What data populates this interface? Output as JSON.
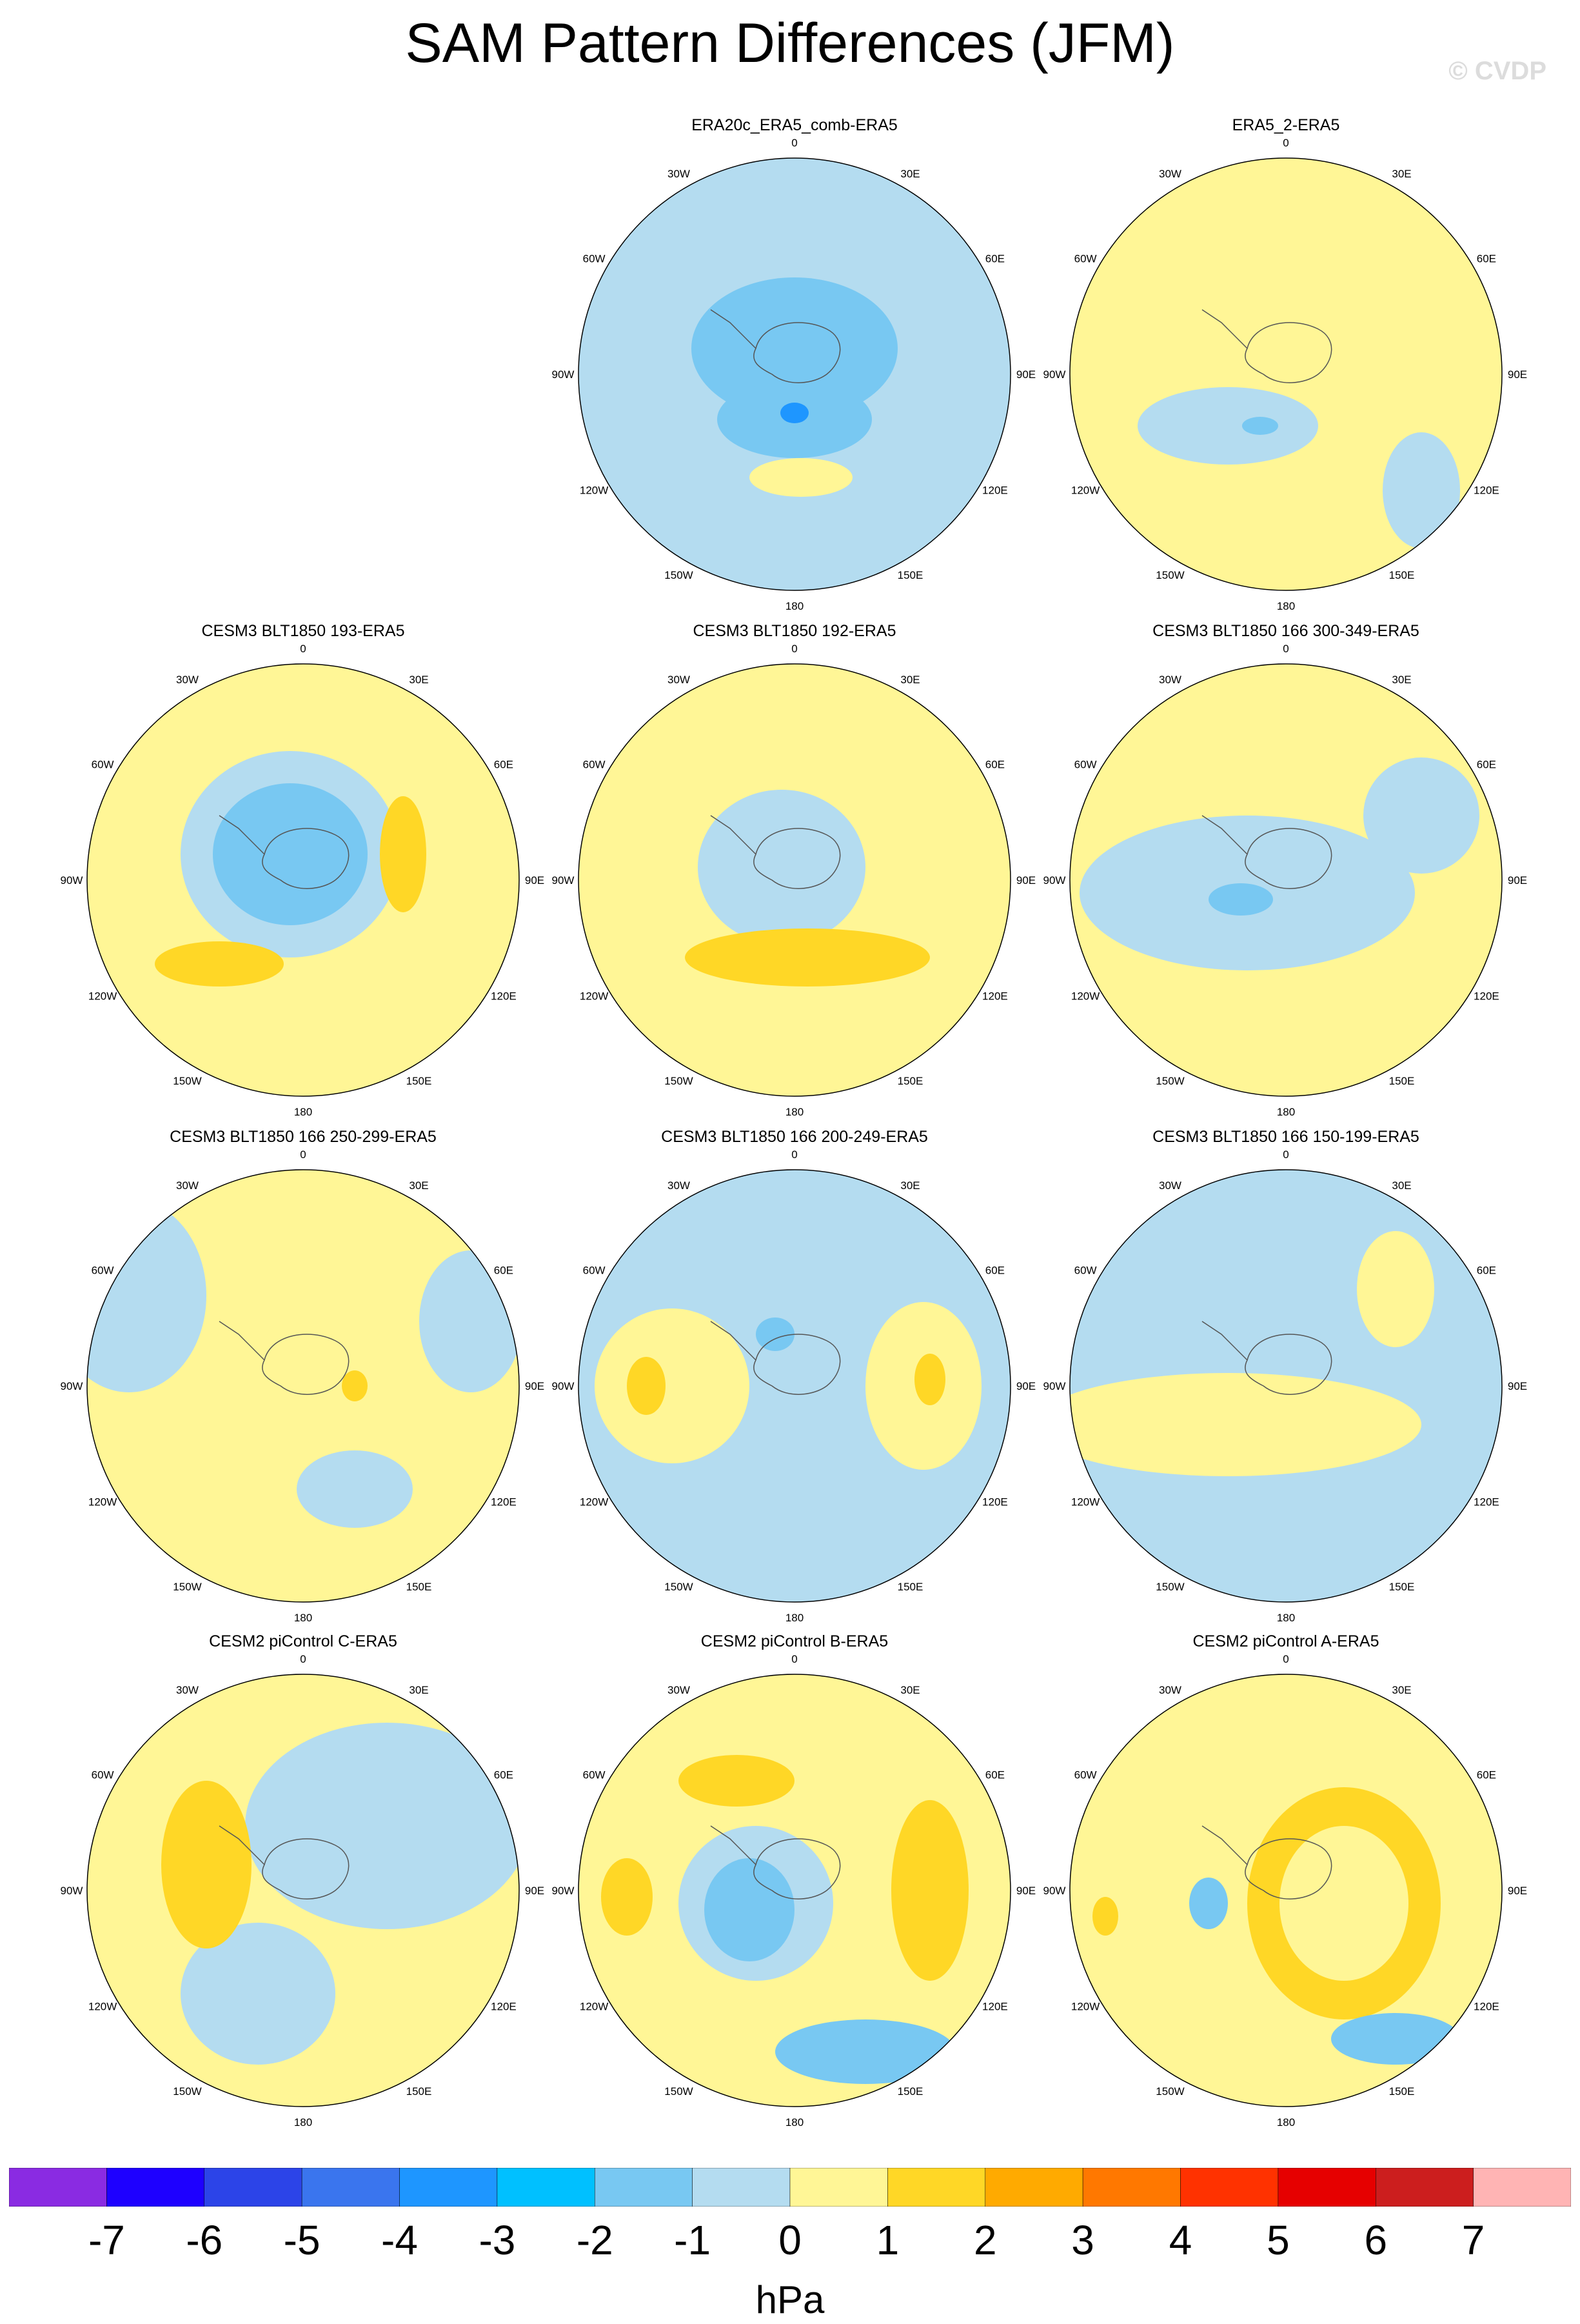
{
  "title": "SAM Pattern Differences (JFM)",
  "watermark": "© CVDP",
  "longitude_labels": [
    "0",
    "30E",
    "60E",
    "90E",
    "120E",
    "150E",
    "180",
    "150W",
    "120W",
    "90W",
    "60W",
    "30W"
  ],
  "panels": [
    {
      "title": "ERA20c_ERA5_comb-ERA5",
      "base": "neg"
    },
    {
      "title": "ERA5_2-ERA5",
      "base": "pos"
    },
    {
      "title": "CESM3 BLT1850 193-ERA5",
      "base": "pos"
    },
    {
      "title": "CESM3 BLT1850 192-ERA5",
      "base": "pos"
    },
    {
      "title": "CESM3 BLT1850 166 300-349-ERA5",
      "base": "pos"
    },
    {
      "title": "CESM3 BLT1850 166 250-299-ERA5",
      "base": "pos"
    },
    {
      "title": "CESM3 BLT1850 166 200-249-ERA5",
      "base": "neg"
    },
    {
      "title": "CESM3 BLT1850 166 150-199-ERA5",
      "base": "neg"
    },
    {
      "title": "CESM2 piControl C-ERA5",
      "base": "pos"
    },
    {
      "title": "CESM2 piControl B-ERA5",
      "base": "pos"
    },
    {
      "title": "CESM2 piControl A-ERA5",
      "base": "pos"
    }
  ],
  "colorbar": {
    "units": "hPa",
    "ticks": [
      "-7",
      "-6",
      "-5",
      "-4",
      "-3",
      "-2",
      "-1",
      "0",
      "1",
      "2",
      "3",
      "4",
      "5",
      "6",
      "7"
    ],
    "colors": [
      "#8a2be2",
      "#1e00ff",
      "#2c44e8",
      "#3a75ee",
      "#1e96ff",
      "#00c0ff",
      "#78c8f2",
      "#b4dcf0",
      "#fff696",
      "#ffd726",
      "#ffaa00",
      "#ff7800",
      "#ff3200",
      "#e60000",
      "#cc1e1e",
      "#ffb4b4"
    ]
  }
}
